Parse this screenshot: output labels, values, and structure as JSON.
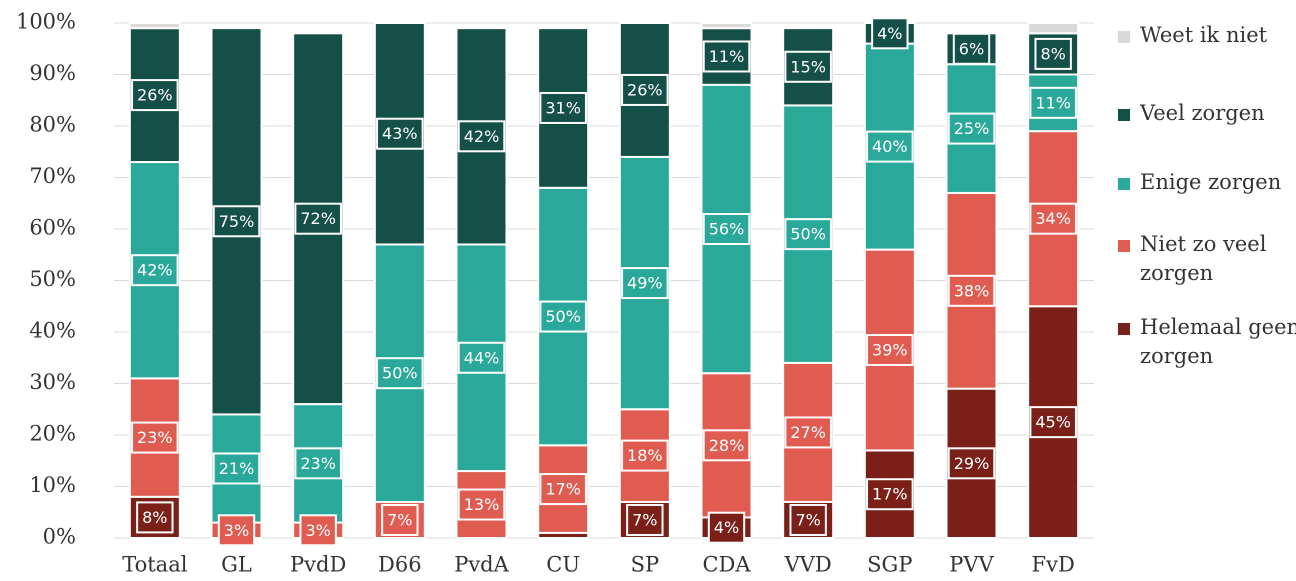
{
  "chart_data": {
    "type": "stacked-bar",
    "categories": [
      "Totaal",
      "GL",
      "PvdD",
      "D66",
      "PvdA",
      "CU",
      "SP",
      "CDA",
      "VVD",
      "SGP",
      "PVV",
      "FvD"
    ],
    "series": [
      {
        "name": "Helemaal geen zorgen",
        "color": "#7b2019",
        "values": [
          8,
          0,
          0,
          0,
          0,
          1,
          7,
          4,
          7,
          17,
          29,
          45
        ],
        "value_labels": [
          "8%",
          null,
          null,
          null,
          null,
          null,
          "7%",
          "4%",
          "7%",
          "17%",
          "29%",
          "45%"
        ]
      },
      {
        "name": "Niet zo veel zorgen",
        "color": "#e05c50",
        "values": [
          23,
          3,
          3,
          7,
          13,
          17,
          18,
          28,
          27,
          39,
          38,
          34
        ],
        "value_labels": [
          "23%",
          "3%",
          "3%",
          "7%",
          "13%",
          "17%",
          "18%",
          "28%",
          "27%",
          "39%",
          "38%",
          "34%"
        ]
      },
      {
        "name": "Enige zorgen",
        "color": "#2aa89a",
        "values": [
          42,
          21,
          23,
          50,
          44,
          50,
          49,
          56,
          50,
          40,
          25,
          11
        ],
        "value_labels": [
          "42%",
          "21%",
          "23%",
          "50%",
          "44%",
          "50%",
          "49%",
          "56%",
          "50%",
          "40%",
          "25%",
          "11%"
        ]
      },
      {
        "name": "Veel zorgen",
        "color": "#144f48",
        "values": [
          26,
          75,
          72,
          43,
          42,
          31,
          26,
          11,
          15,
          4,
          6,
          8
        ],
        "value_labels": [
          "26%",
          "75%",
          "72%",
          "43%",
          "42%",
          "31%",
          "26%",
          "11%",
          "15%",
          "4%",
          "6%",
          "8%"
        ]
      },
      {
        "name": "Weet ik niet",
        "color": "#d9d9d9",
        "values": [
          1,
          0,
          0,
          0,
          0,
          0,
          0,
          1,
          0,
          0,
          0,
          2
        ],
        "value_labels": [
          null,
          null,
          null,
          null,
          null,
          null,
          null,
          null,
          null,
          null,
          null,
          null
        ]
      }
    ],
    "ylim": [
      0,
      100
    ],
    "yticks": [
      {
        "value": 0,
        "label": "0%"
      },
      {
        "value": 10,
        "label": "10%"
      },
      {
        "value": 20,
        "label": "20%"
      },
      {
        "value": 30,
        "label": "30%"
      },
      {
        "value": 40,
        "label": "40%"
      },
      {
        "value": 50,
        "label": "50%"
      },
      {
        "value": 60,
        "label": "60%"
      },
      {
        "value": 70,
        "label": "70%"
      },
      {
        "value": 80,
        "label": "80%"
      },
      {
        "value": 90,
        "label": "90%"
      },
      {
        "value": 100,
        "label": "100%"
      }
    ],
    "grid": true,
    "legend": "right"
  }
}
